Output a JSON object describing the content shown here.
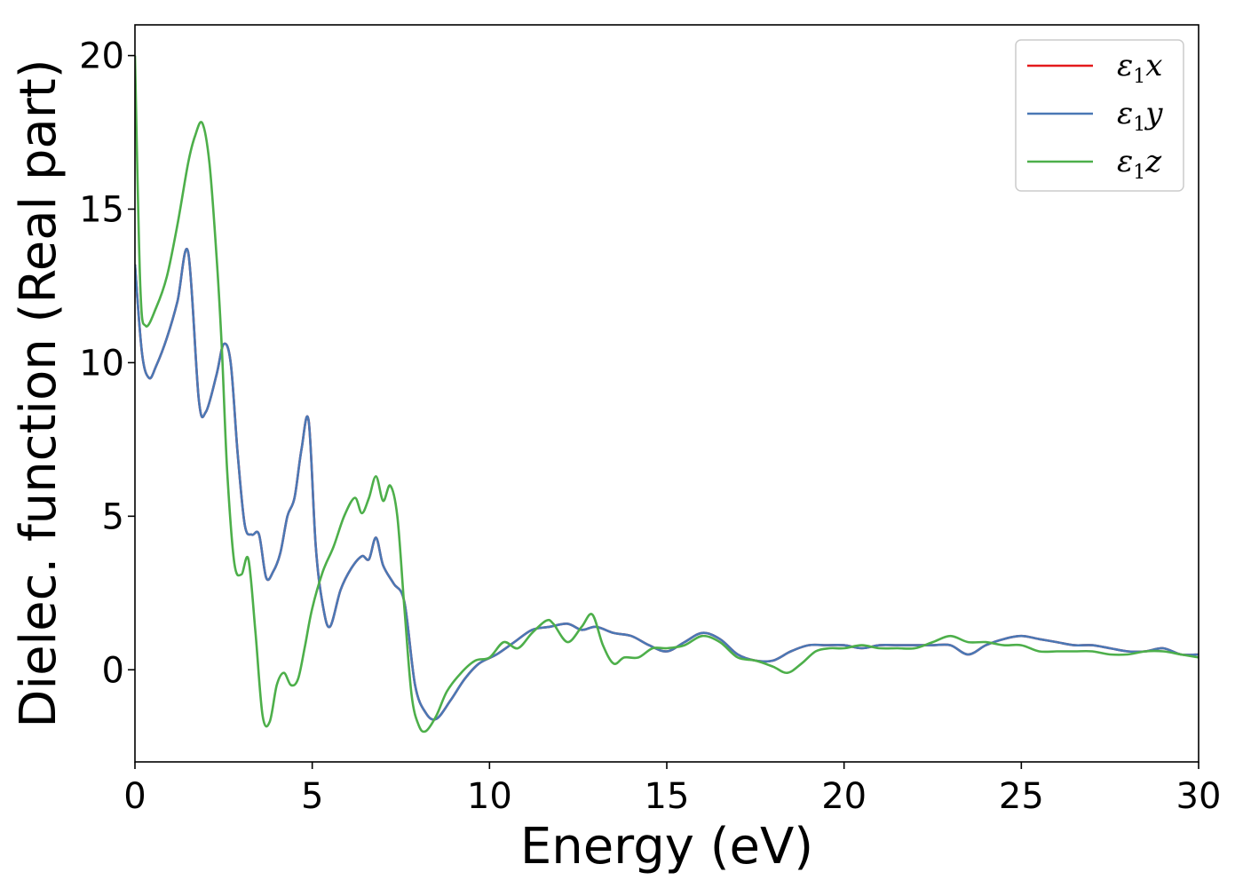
{
  "chart_data": {
    "type": "line",
    "title": "",
    "xlabel": "Energy (eV)",
    "ylabel": "Dielec. function (Real part)",
    "xlim": [
      0,
      30
    ],
    "ylim": [
      -3,
      21
    ],
    "xticks": [
      "0",
      "5",
      "10",
      "15",
      "20",
      "25",
      "30"
    ],
    "yticks": [
      "0",
      "5",
      "10",
      "15",
      "20"
    ],
    "grid": false,
    "legend_position": "top-right",
    "series": [
      {
        "name": "ε1x",
        "legend_base": "ε",
        "legend_sub": "1",
        "legend_var": "x",
        "color": "#e41a1c",
        "x": [
          0,
          0.2,
          0.4,
          0.6,
          0.9,
          1.2,
          1.5,
          1.8,
          2.0,
          2.3,
          2.5,
          2.7,
          2.9,
          3.1,
          3.3,
          3.5,
          3.7,
          3.9,
          4.1,
          4.3,
          4.5,
          4.7,
          4.9,
          5.1,
          5.3,
          5.5,
          5.8,
          6.1,
          6.4,
          6.6,
          6.8,
          7.0,
          7.3,
          7.6,
          7.9,
          8.2,
          8.5,
          8.9,
          9.3,
          9.7,
          10.2,
          10.7,
          11.2,
          11.7,
          12.2,
          12.6,
          13.0,
          13.5,
          14.0,
          14.5,
          15.0,
          15.5,
          16.0,
          16.5,
          17.0,
          17.5,
          18.0,
          18.5,
          19.0,
          19.5,
          20.0,
          20.5,
          21.0,
          21.5,
          22.0,
          22.5,
          23.0,
          23.5,
          24.0,
          24.5,
          25.0,
          25.5,
          26.0,
          26.5,
          27.0,
          27.5,
          28.0,
          28.5,
          29.0,
          29.5,
          30.0
        ],
        "y": [
          13.2,
          10.3,
          9.5,
          9.9,
          10.8,
          12.0,
          13.6,
          8.8,
          8.4,
          9.6,
          10.6,
          10.0,
          7.0,
          4.7,
          4.4,
          4.4,
          3.0,
          3.2,
          3.8,
          5.0,
          5.6,
          7.2,
          8.1,
          4.0,
          2.1,
          1.4,
          2.6,
          3.3,
          3.7,
          3.6,
          4.3,
          3.4,
          2.8,
          2.2,
          -0.5,
          -1.4,
          -1.6,
          -1.0,
          -0.3,
          0.2,
          0.5,
          0.9,
          1.3,
          1.4,
          1.5,
          1.3,
          1.4,
          1.2,
          1.1,
          0.8,
          0.6,
          0.9,
          1.2,
          1.0,
          0.5,
          0.3,
          0.3,
          0.6,
          0.8,
          0.8,
          0.8,
          0.7,
          0.8,
          0.8,
          0.8,
          0.8,
          0.8,
          0.5,
          0.8,
          1.0,
          1.1,
          1.0,
          0.9,
          0.8,
          0.8,
          0.7,
          0.6,
          0.6,
          0.7,
          0.5,
          0.5
        ]
      },
      {
        "name": "ε1y",
        "legend_base": "ε",
        "legend_sub": "1",
        "legend_var": "y",
        "color": "#4a78b5",
        "x": [
          0,
          0.2,
          0.4,
          0.6,
          0.9,
          1.2,
          1.5,
          1.8,
          2.0,
          2.3,
          2.5,
          2.7,
          2.9,
          3.1,
          3.3,
          3.5,
          3.7,
          3.9,
          4.1,
          4.3,
          4.5,
          4.7,
          4.9,
          5.1,
          5.3,
          5.5,
          5.8,
          6.1,
          6.4,
          6.6,
          6.8,
          7.0,
          7.3,
          7.6,
          7.9,
          8.2,
          8.5,
          8.9,
          9.3,
          9.7,
          10.2,
          10.7,
          11.2,
          11.7,
          12.2,
          12.6,
          13.0,
          13.5,
          14.0,
          14.5,
          15.0,
          15.5,
          16.0,
          16.5,
          17.0,
          17.5,
          18.0,
          18.5,
          19.0,
          19.5,
          20.0,
          20.5,
          21.0,
          21.5,
          22.0,
          22.5,
          23.0,
          23.5,
          24.0,
          24.5,
          25.0,
          25.5,
          26.0,
          26.5,
          27.0,
          27.5,
          28.0,
          28.5,
          29.0,
          29.5,
          30.0
        ],
        "y": [
          13.2,
          10.3,
          9.5,
          9.9,
          10.8,
          12.0,
          13.6,
          8.8,
          8.4,
          9.6,
          10.6,
          10.0,
          7.0,
          4.7,
          4.4,
          4.4,
          3.0,
          3.2,
          3.8,
          5.0,
          5.6,
          7.2,
          8.1,
          4.0,
          2.1,
          1.4,
          2.6,
          3.3,
          3.7,
          3.6,
          4.3,
          3.4,
          2.8,
          2.2,
          -0.5,
          -1.4,
          -1.6,
          -1.0,
          -0.3,
          0.2,
          0.5,
          0.9,
          1.3,
          1.4,
          1.5,
          1.3,
          1.4,
          1.2,
          1.1,
          0.8,
          0.6,
          0.9,
          1.2,
          1.0,
          0.5,
          0.3,
          0.3,
          0.6,
          0.8,
          0.8,
          0.8,
          0.7,
          0.8,
          0.8,
          0.8,
          0.8,
          0.8,
          0.5,
          0.8,
          1.0,
          1.1,
          1.0,
          0.9,
          0.8,
          0.8,
          0.7,
          0.6,
          0.6,
          0.7,
          0.5,
          0.5
        ]
      },
      {
        "name": "ε1z",
        "legend_base": "ε",
        "legend_sub": "1",
        "legend_var": "z",
        "color": "#4daf4a",
        "x": [
          0,
          0.15,
          0.3,
          0.6,
          0.9,
          1.2,
          1.5,
          1.7,
          1.9,
          2.1,
          2.3,
          2.45,
          2.6,
          2.8,
          3.0,
          3.2,
          3.4,
          3.6,
          3.8,
          4.0,
          4.2,
          4.4,
          4.6,
          4.8,
          5.0,
          5.3,
          5.6,
          5.9,
          6.2,
          6.4,
          6.6,
          6.8,
          7.0,
          7.2,
          7.4,
          7.6,
          7.8,
          8.0,
          8.2,
          8.5,
          8.8,
          9.2,
          9.6,
          10.0,
          10.4,
          10.8,
          11.2,
          11.6,
          11.8,
          12.2,
          12.6,
          12.9,
          13.2,
          13.5,
          13.8,
          14.2,
          14.6,
          15.0,
          15.5,
          16.0,
          16.5,
          17.0,
          17.5,
          18.0,
          18.4,
          18.8,
          19.2,
          19.6,
          20.0,
          20.5,
          21.0,
          21.5,
          22.0,
          22.5,
          23.0,
          23.5,
          24.0,
          24.5,
          25.0,
          25.5,
          26.0,
          26.5,
          27.0,
          27.5,
          28.0,
          28.5,
          29.0,
          29.5,
          30.0
        ],
        "y": [
          20.0,
          12.5,
          11.2,
          11.8,
          12.8,
          14.5,
          16.5,
          17.4,
          17.8,
          16.5,
          13.5,
          10.5,
          6.5,
          3.5,
          3.1,
          3.6,
          1.2,
          -1.5,
          -1.7,
          -0.5,
          -0.1,
          -0.5,
          -0.3,
          0.8,
          2.0,
          3.2,
          4.0,
          5.0,
          5.6,
          5.1,
          5.6,
          6.3,
          5.5,
          6.0,
          5.0,
          2.0,
          -0.8,
          -1.8,
          -2.0,
          -1.5,
          -0.7,
          -0.1,
          0.3,
          0.4,
          0.9,
          0.7,
          1.2,
          1.6,
          1.5,
          0.9,
          1.4,
          1.8,
          0.8,
          0.2,
          0.4,
          0.4,
          0.7,
          0.7,
          0.8,
          1.1,
          0.9,
          0.4,
          0.3,
          0.1,
          -0.1,
          0.2,
          0.6,
          0.7,
          0.7,
          0.8,
          0.7,
          0.7,
          0.7,
          0.9,
          1.1,
          0.9,
          0.9,
          0.8,
          0.8,
          0.6,
          0.6,
          0.6,
          0.6,
          0.5,
          0.5,
          0.6,
          0.6,
          0.5,
          0.4
        ]
      }
    ]
  }
}
